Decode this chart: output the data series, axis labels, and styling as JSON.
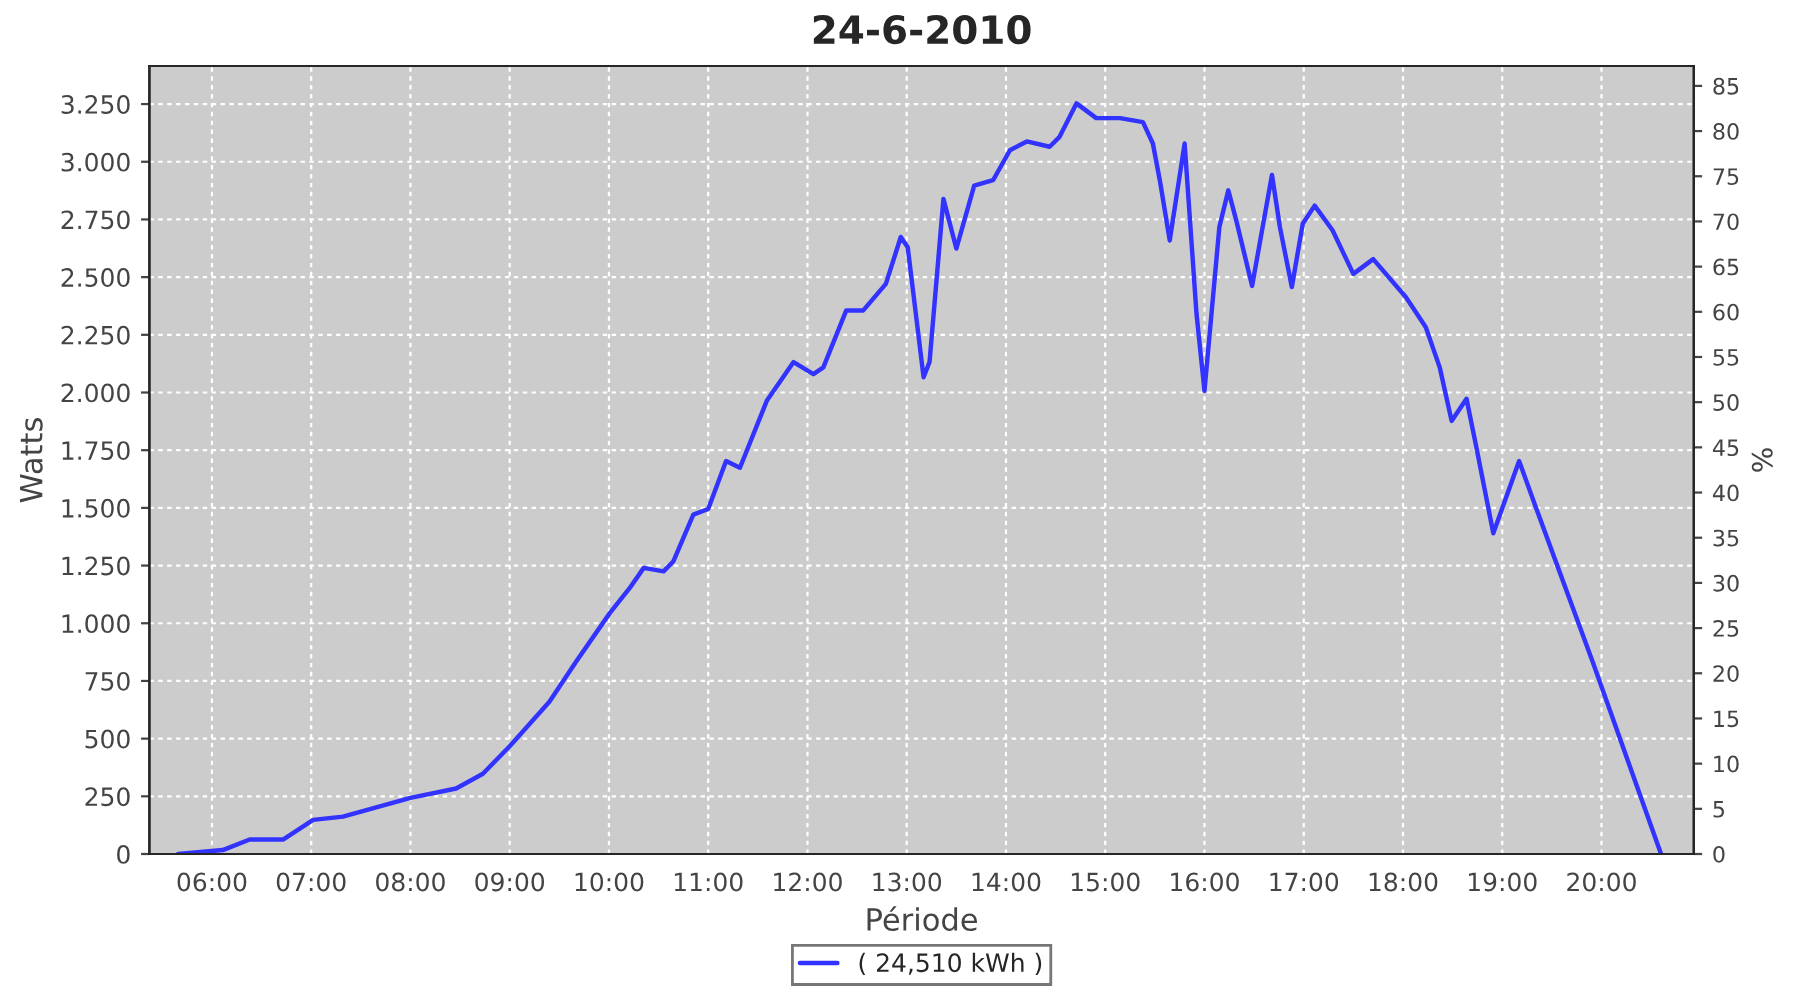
{
  "chart_data": {
    "type": "line",
    "title": "24-6-2010",
    "xlabel": "Période",
    "ylabel": "Watts",
    "y2label": "%",
    "xlim": [
      5.37,
      20.93
    ],
    "xticks": [
      {
        "value": 6,
        "label": "06:00"
      },
      {
        "value": 7,
        "label": "07:00"
      },
      {
        "value": 8,
        "label": "08:00"
      },
      {
        "value": 9,
        "label": "09:00"
      },
      {
        "value": 10,
        "label": "10:00"
      },
      {
        "value": 11,
        "label": "11:00"
      },
      {
        "value": 12,
        "label": "12:00"
      },
      {
        "value": 13,
        "label": "13:00"
      },
      {
        "value": 14,
        "label": "14:00"
      },
      {
        "value": 15,
        "label": "15:00"
      },
      {
        "value": 16,
        "label": "16:00"
      },
      {
        "value": 17,
        "label": "17:00"
      },
      {
        "value": 18,
        "label": "18:00"
      },
      {
        "value": 19,
        "label": "19:00"
      },
      {
        "value": 20,
        "label": "20:00"
      }
    ],
    "ylim": [
      0,
      3415
    ],
    "yticks": [
      {
        "value": 0,
        "label": "0"
      },
      {
        "value": 250,
        "label": "250"
      },
      {
        "value": 500,
        "label": "500"
      },
      {
        "value": 750,
        "label": "750"
      },
      {
        "value": 1000,
        "label": "1.000"
      },
      {
        "value": 1250,
        "label": "1.250"
      },
      {
        "value": 1500,
        "label": "1.500"
      },
      {
        "value": 1750,
        "label": "1.750"
      },
      {
        "value": 2000,
        "label": "2.000"
      },
      {
        "value": 2250,
        "label": "2.250"
      },
      {
        "value": 2500,
        "label": "2.500"
      },
      {
        "value": 2750,
        "label": "2.750"
      },
      {
        "value": 3000,
        "label": "3.000"
      },
      {
        "value": 3250,
        "label": "3.250"
      }
    ],
    "y2lim": [
      0,
      87.2
    ],
    "y2ticks": [
      0,
      5,
      10,
      15,
      20,
      25,
      30,
      35,
      40,
      45,
      50,
      55,
      60,
      65,
      70,
      75,
      80,
      85
    ],
    "grid": true,
    "legend": "bottom",
    "series": [
      {
        "name": "( 24,510 kWh )",
        "color": "#3333ff",
        "x": [
          5.66,
          6.11,
          6.38,
          6.72,
          7.02,
          7.32,
          8.0,
          8.46,
          8.73,
          9.0,
          9.4,
          9.67,
          10.01,
          10.21,
          10.35,
          10.55,
          10.65,
          10.85,
          11.0,
          11.18,
          11.32,
          11.59,
          11.86,
          12.06,
          12.16,
          12.39,
          12.56,
          12.79,
          12.94,
          13.01,
          13.17,
          13.23,
          13.37,
          13.5,
          13.68,
          13.87,
          14.04,
          14.21,
          14.44,
          14.54,
          14.71,
          14.91,
          15.15,
          15.38,
          15.48,
          15.55,
          15.65,
          15.8,
          15.92,
          16.0,
          16.15,
          16.24,
          16.32,
          16.48,
          16.68,
          16.76,
          16.88,
          16.99,
          17.11,
          17.29,
          17.5,
          17.7,
          18.03,
          18.23,
          18.37,
          18.49,
          18.64,
          18.74,
          18.91,
          19.17,
          19.34,
          19.91,
          20.6
        ],
        "values": [
          0,
          17,
          63,
          63,
          148,
          162,
          243,
          284,
          348,
          467,
          660,
          834,
          1045,
          1153,
          1240,
          1225,
          1269,
          1471,
          1495,
          1703,
          1674,
          1964,
          2132,
          2080,
          2109,
          2355,
          2355,
          2471,
          2674,
          2630,
          2066,
          2132,
          2839,
          2624,
          2897,
          2920,
          3050,
          3088,
          3065,
          3108,
          3253,
          3189,
          3189,
          3172,
          3079,
          2920,
          2659,
          3079,
          2340,
          2007,
          2717,
          2876,
          2746,
          2462,
          2943,
          2717,
          2457,
          2731,
          2810,
          2703,
          2514,
          2578,
          2413,
          2283,
          2109,
          1877,
          1973,
          1761,
          1390,
          1703,
          1501,
          834,
          0
        ]
      }
    ]
  }
}
